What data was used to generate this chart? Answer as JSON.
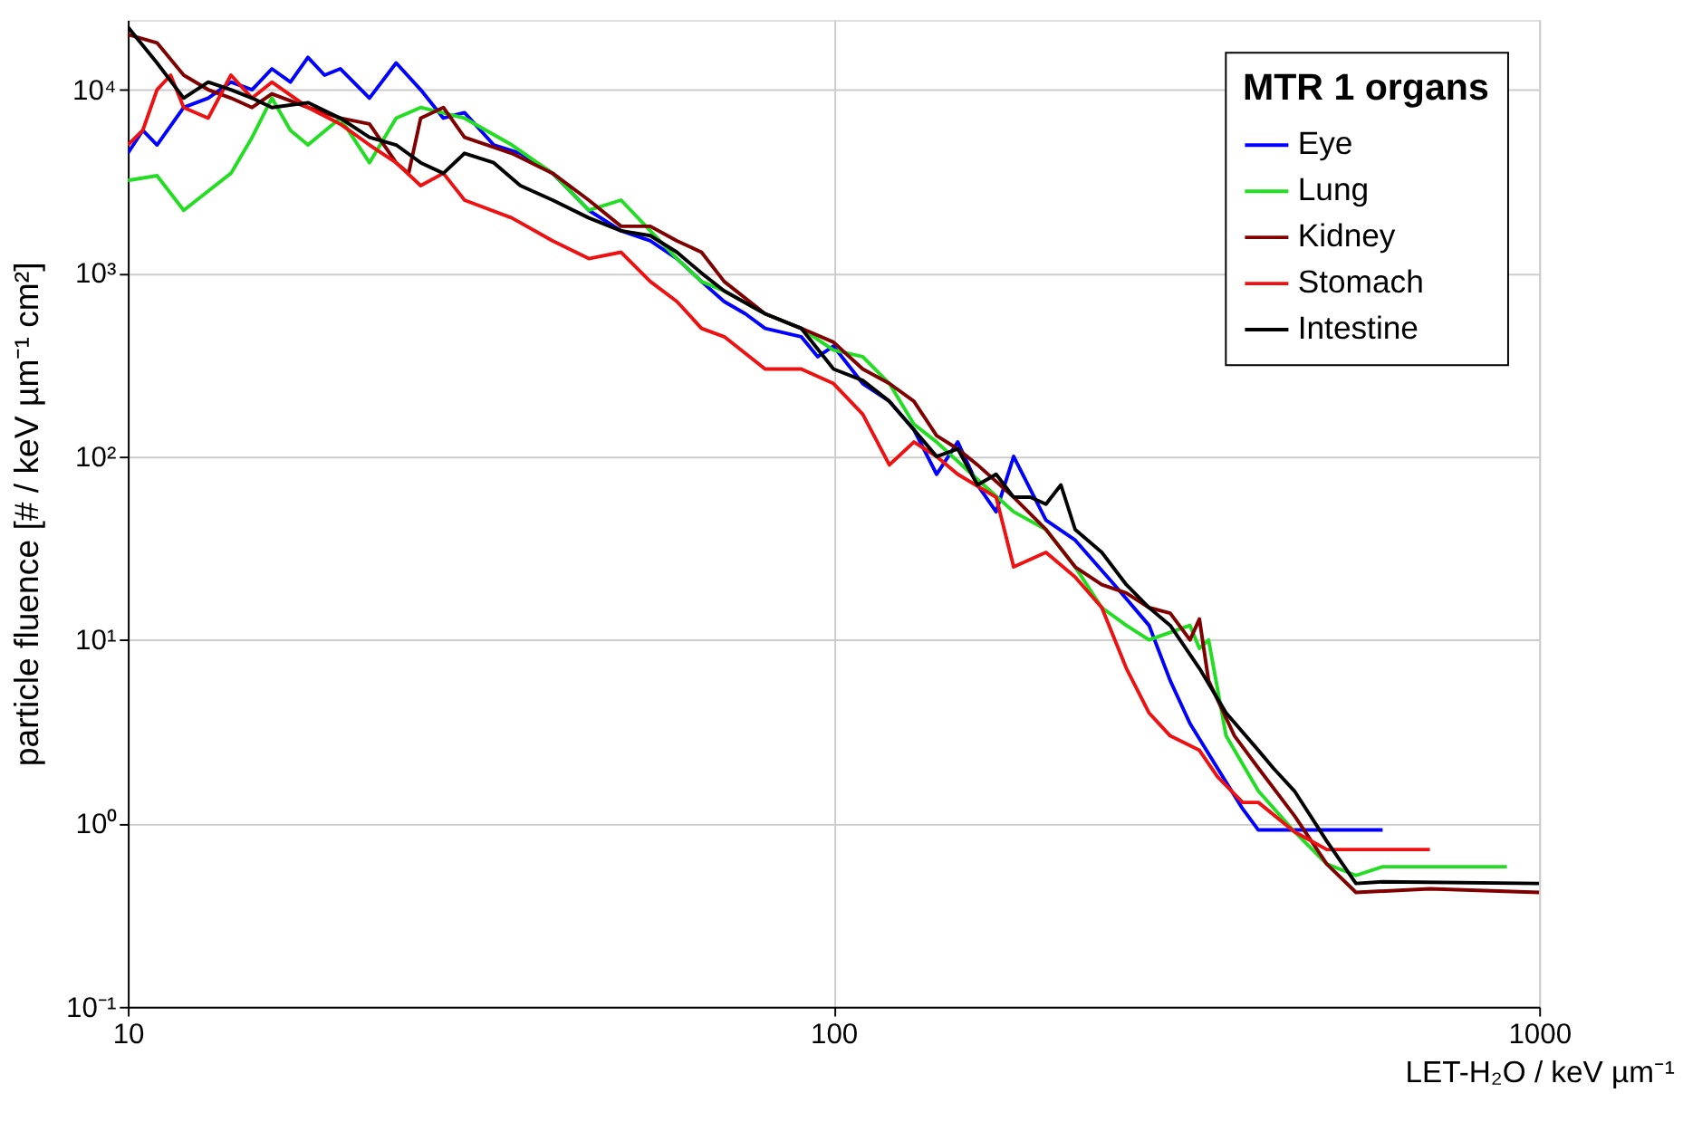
{
  "chart_data": {
    "type": "line",
    "xlabel": "LET-H₂O / keV µm⁻¹",
    "ylabel": "particle fluence [# / keV µm⁻¹ cm²]",
    "legend_title": "MTR 1 organs",
    "legend": "top right",
    "grid": true,
    "log": "xy",
    "line_style": "solid",
    "marker": "none",
    "xlim": [
      10,
      1000
    ],
    "xticks": [
      10,
      100,
      1000
    ],
    "ylim": [
      0.1,
      24000
    ],
    "yticks": [
      {
        "value": 0.1,
        "label": "10⁻¹"
      },
      {
        "value": 1,
        "label": "10⁰"
      },
      {
        "value": 10,
        "label": "10¹"
      },
      {
        "value": 100,
        "label": "10²"
      },
      {
        "value": 1000,
        "label": "10³"
      },
      {
        "value": 10000,
        "label": "10⁴"
      }
    ],
    "series": [
      {
        "name": "Eye",
        "color": "#0000ff",
        "x": [
          10,
          10.5,
          11,
          12,
          13,
          14,
          15,
          16,
          17,
          18,
          19,
          20,
          22,
          24,
          26,
          28,
          30,
          33,
          36,
          40,
          45,
          50,
          55,
          60,
          65,
          70,
          75,
          80,
          90,
          95,
          100,
          110,
          120,
          130,
          140,
          150,
          160,
          170,
          180,
          200,
          220,
          250,
          280,
          300,
          320,
          350,
          380,
          400,
          500,
          600
        ],
        "values": [
          4500,
          6000,
          5000,
          8000,
          9000,
          11000,
          10000,
          13000,
          11000,
          15000,
          12000,
          13000,
          9000,
          14000,
          10000,
          7000,
          7500,
          5000,
          4500,
          3500,
          2200,
          1700,
          1500,
          1200,
          900,
          700,
          600,
          500,
          450,
          350,
          400,
          250,
          200,
          140,
          80,
          120,
          70,
          50,
          100,
          45,
          35,
          20,
          12,
          6,
          3.5,
          2,
          1.2,
          0.92,
          0.92,
          0.92
        ]
      },
      {
        "name": "Lung",
        "color": "#22dd22",
        "x": [
          10,
          11,
          12,
          13,
          14,
          15,
          16,
          17,
          18,
          20,
          22,
          24,
          26,
          30,
          35,
          40,
          45,
          50,
          55,
          60,
          65,
          70,
          80,
          90,
          100,
          110,
          120,
          130,
          140,
          160,
          180,
          200,
          220,
          240,
          260,
          280,
          300,
          320,
          330,
          340,
          360,
          400,
          450,
          500,
          550,
          600,
          900
        ],
        "values": [
          3200,
          3400,
          2200,
          2800,
          3500,
          5500,
          9000,
          6000,
          5000,
          7000,
          4000,
          7000,
          8000,
          7000,
          5000,
          3500,
          2200,
          2500,
          1700,
          1200,
          900,
          800,
          600,
          500,
          380,
          350,
          250,
          150,
          120,
          75,
          50,
          40,
          25,
          15,
          12,
          10,
          11,
          12,
          9,
          10,
          3,
          1.5,
          0.9,
          0.6,
          0.52,
          0.58,
          0.58
        ]
      },
      {
        "name": "Kidney",
        "color": "#800000",
        "x": [
          10,
          11,
          12,
          13,
          14,
          15,
          16,
          18,
          20,
          22,
          24,
          25,
          26,
          28,
          30,
          35,
          40,
          45,
          50,
          55,
          60,
          65,
          70,
          80,
          90,
          100,
          110,
          120,
          130,
          140,
          150,
          160,
          180,
          200,
          220,
          240,
          260,
          280,
          300,
          320,
          330,
          340,
          370,
          400,
          450,
          500,
          550,
          700,
          1000
        ],
        "values": [
          20000,
          18000,
          12000,
          10000,
          9000,
          8000,
          9500,
          8000,
          7000,
          6500,
          4000,
          3500,
          7000,
          8000,
          5500,
          4500,
          3500,
          2500,
          1800,
          1800,
          1500,
          1300,
          900,
          600,
          500,
          420,
          300,
          250,
          200,
          130,
          110,
          90,
          60,
          40,
          25,
          20,
          18,
          15,
          14,
          10,
          13,
          6,
          3,
          2,
          1.1,
          0.6,
          0.42,
          0.44,
          0.42
        ]
      },
      {
        "name": "Stomach",
        "color": "#ee1111",
        "x": [
          10,
          10.5,
          11,
          11.5,
          12,
          13,
          14,
          15,
          16,
          18,
          20,
          22,
          24,
          26,
          28,
          30,
          35,
          40,
          45,
          50,
          55,
          60,
          65,
          70,
          80,
          90,
          100,
          110,
          120,
          130,
          140,
          150,
          170,
          180,
          200,
          220,
          240,
          260,
          280,
          300,
          330,
          350,
          380,
          400,
          450,
          500,
          550,
          700
        ],
        "values": [
          5000,
          6000,
          10000,
          12000,
          8000,
          7000,
          12000,
          9000,
          11000,
          8000,
          6500,
          5000,
          4000,
          3000,
          3500,
          2500,
          2000,
          1500,
          1200,
          1300,
          900,
          700,
          500,
          450,
          300,
          300,
          250,
          170,
          90,
          120,
          100,
          80,
          60,
          25,
          30,
          22,
          15,
          7,
          4,
          3,
          2.5,
          1.8,
          1.3,
          1.3,
          0.9,
          0.72,
          0.72,
          0.72
        ]
      },
      {
        "name": "Intestine",
        "color": "#000000",
        "x": [
          10,
          11,
          12,
          13,
          14,
          15,
          16,
          18,
          20,
          22,
          24,
          26,
          28,
          30,
          33,
          36,
          40,
          45,
          50,
          55,
          60,
          65,
          70,
          80,
          90,
          100,
          110,
          120,
          130,
          140,
          150,
          160,
          170,
          180,
          190,
          200,
          210,
          220,
          240,
          260,
          280,
          300,
          330,
          360,
          400,
          420,
          450,
          500,
          550,
          600,
          1000
        ],
        "values": [
          22000,
          14000,
          9000,
          11000,
          10000,
          9000,
          8000,
          8500,
          7000,
          5500,
          5000,
          4000,
          3500,
          4500,
          4000,
          3000,
          2500,
          2000,
          1700,
          1600,
          1300,
          1000,
          800,
          600,
          500,
          300,
          260,
          200,
          140,
          100,
          110,
          70,
          80,
          60,
          60,
          55,
          70,
          40,
          30,
          20,
          15,
          12,
          7,
          4,
          2.5,
          2,
          1.5,
          0.8,
          0.47,
          0.48,
          0.47
        ]
      }
    ]
  }
}
